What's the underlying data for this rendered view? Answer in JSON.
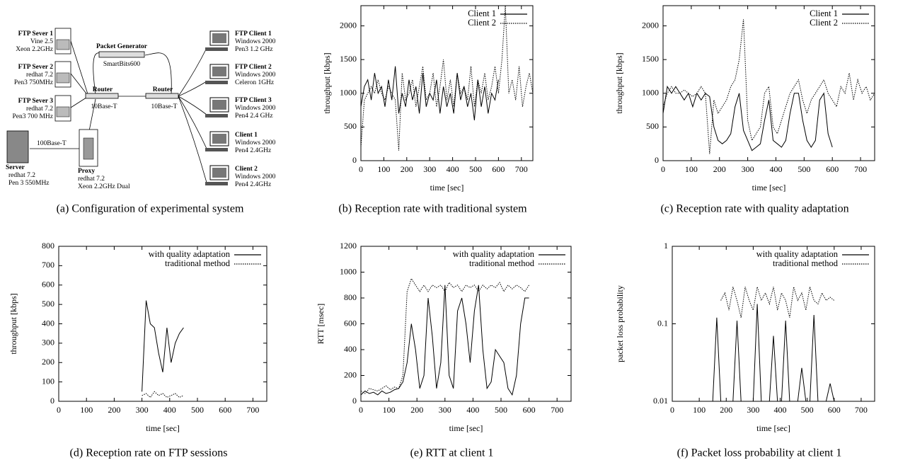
{
  "diagram": {
    "caption": "(a)  Configuration of experimental system",
    "nodes": [
      {
        "title": "FTP Sever 1",
        "lines": [
          "Vine 2.5",
          "Xeon 2.2GHz"
        ]
      },
      {
        "title": "FTP Sever 2",
        "lines": [
          "redhat 7.2",
          "Pen3 750MHz"
        ]
      },
      {
        "title": "FTP Sever 3",
        "lines": [
          "redhat 7.2",
          "Pen3 700 MHz"
        ]
      },
      {
        "title": "Packet Generator",
        "lines": [
          "SmartBits600"
        ]
      },
      {
        "title": "Router",
        "lines": [
          "10Base-T"
        ]
      },
      {
        "title": "Router",
        "lines": [
          "10Base-T"
        ]
      },
      {
        "title": "Server",
        "lines": [
          "redhat 7.2",
          "Pen 3  550MHz"
        ]
      },
      {
        "title": "Proxy",
        "lines": [
          "redhat 7.2",
          "Xeon 2.2GHz Dual"
        ]
      },
      {
        "title": "FTP Client 1",
        "lines": [
          "Windows 2000",
          "Pen3 1.2 GHz"
        ]
      },
      {
        "title": "FTP Client 2",
        "lines": [
          "Windows 2000",
          "Celeron 1GHz"
        ]
      },
      {
        "title": "FTP Client 3",
        "lines": [
          "Windows 2000",
          "Pen4 2.4 GHz"
        ]
      },
      {
        "title": "Client 1",
        "lines": [
          "Windows 2000",
          "Pen4 2.4GHz"
        ]
      },
      {
        "title": "Client 2",
        "lines": [
          "Windows 2000",
          "Pen4 2.4GHz"
        ]
      }
    ],
    "link_label": "100Base-T"
  },
  "chart_data": [
    {
      "type": "line",
      "caption": "(b)  Reception rate with traditional system",
      "xlabel": "time [sec]",
      "ylabel": "throughput [kbps]",
      "xlim": [
        0,
        750
      ],
      "ylim": [
        0,
        2300
      ],
      "xticks": [
        0,
        100,
        200,
        300,
        400,
        500,
        600,
        700
      ],
      "yticks": [
        0,
        500,
        1000,
        1500,
        2000
      ],
      "x": [
        0,
        15,
        30,
        45,
        60,
        75,
        90,
        105,
        120,
        135,
        150,
        165,
        180,
        195,
        210,
        225,
        240,
        255,
        270,
        285,
        300,
        315,
        330,
        345,
        360,
        375,
        390,
        405,
        420,
        435,
        450,
        465,
        480,
        495,
        510,
        525,
        540,
        555,
        570,
        585,
        600,
        615,
        630,
        645,
        660,
        675,
        690,
        705,
        720,
        735,
        750
      ],
      "series": [
        {
          "name": "Client 1",
          "color": "#000000",
          "line_style": "solid",
          "values": [
            800,
            1100,
            1200,
            900,
            1300,
            1000,
            1100,
            800,
            1200,
            900,
            1400,
            700,
            1000,
            800,
            1200,
            900,
            1100,
            700,
            1300,
            800,
            1000,
            900,
            1200,
            700,
            1100,
            800,
            1000,
            700,
            1300,
            900,
            1100,
            800,
            1000,
            600,
            1200,
            800,
            1100,
            700,
            1000,
            900,
            1200,
            null,
            null,
            null,
            null,
            null,
            null,
            null,
            null,
            null,
            null
          ]
        },
        {
          "name": "Client 2",
          "color": "#000000",
          "line_style": "dotted",
          "values": [
            200,
            900,
            1000,
            1100,
            1000,
            1200,
            1000,
            900,
            1100,
            1000,
            900,
            150,
            1300,
            900,
            1000,
            1200,
            800,
            1100,
            1400,
            900,
            1000,
            1300,
            800,
            1100,
            1500,
            900,
            1200,
            800,
            1300,
            1000,
            1100,
            900,
            1400,
            800,
            1200,
            1000,
            1300,
            900,
            1100,
            1400,
            1000,
            1500,
            2300,
            1000,
            1200,
            900,
            1400,
            800,
            1100,
            1300,
            1000
          ]
        }
      ]
    },
    {
      "type": "line",
      "caption": "(c)  Reception rate with quality adaptation",
      "xlabel": "time [sec]",
      "ylabel": "throughput [kbps]",
      "xlim": [
        0,
        750
      ],
      "ylim": [
        0,
        2300
      ],
      "xticks": [
        0,
        100,
        200,
        300,
        400,
        500,
        600,
        700
      ],
      "yticks": [
        0,
        500,
        1000,
        1500,
        2000
      ],
      "x": [
        0,
        15,
        30,
        45,
        60,
        75,
        90,
        105,
        120,
        135,
        150,
        165,
        180,
        195,
        210,
        225,
        240,
        255,
        270,
        285,
        300,
        315,
        330,
        345,
        360,
        375,
        390,
        405,
        420,
        435,
        450,
        465,
        480,
        495,
        510,
        525,
        540,
        555,
        570,
        585,
        600,
        615,
        630,
        645,
        660,
        675,
        690,
        705,
        720,
        735,
        750
      ],
      "series": [
        {
          "name": "Client 1",
          "color": "#000000",
          "line_style": "solid",
          "values": [
            700,
            1100,
            1000,
            1100,
            1000,
            900,
            1000,
            800,
            1000,
            900,
            1000,
            950,
            500,
            300,
            250,
            300,
            400,
            800,
            1000,
            450,
            300,
            150,
            200,
            250,
            600,
            900,
            300,
            250,
            200,
            300,
            700,
            1000,
            1000,
            600,
            300,
            200,
            300,
            900,
            1000,
            400,
            200,
            null,
            null,
            null,
            null,
            null,
            null,
            null,
            null,
            null,
            null
          ]
        },
        {
          "name": "Client 2",
          "color": "#000000",
          "line_style": "dotted",
          "values": [
            800,
            1000,
            1100,
            1000,
            1000,
            1050,
            1000,
            950,
            1000,
            1100,
            1000,
            100,
            900,
            700,
            800,
            900,
            1100,
            1200,
            1500,
            2100,
            600,
            300,
            400,
            500,
            1000,
            1100,
            500,
            400,
            600,
            800,
            1000,
            1100,
            1200,
            900,
            700,
            900,
            1000,
            1100,
            1200,
            1000,
            900,
            800,
            1100,
            1000,
            1300,
            900,
            1200,
            1000,
            1100,
            900,
            1000
          ]
        }
      ]
    },
    {
      "type": "line",
      "caption": "(d)  Reception rate on FTP sessions",
      "xlabel": "time [sec]",
      "ylabel": "throughput [kbps]",
      "xlim": [
        0,
        750
      ],
      "ylim": [
        0,
        800
      ],
      "xticks": [
        0,
        100,
        200,
        300,
        400,
        500,
        600,
        700
      ],
      "yticks": [
        0,
        100,
        200,
        300,
        400,
        500,
        600,
        700,
        800
      ],
      "x": [
        0,
        15,
        30,
        45,
        60,
        75,
        90,
        105,
        120,
        135,
        150,
        165,
        180,
        195,
        210,
        225,
        240,
        255,
        270,
        285,
        300,
        315,
        330,
        345,
        360,
        375,
        390,
        405,
        420,
        435,
        450,
        465,
        480,
        495,
        510,
        525,
        540,
        555,
        570,
        585,
        600,
        615,
        630,
        645,
        660,
        675,
        690,
        705,
        720,
        735,
        750
      ],
      "series": [
        {
          "name": "with quality adaptation",
          "color": "#000000",
          "line_style": "solid",
          "values": [
            null,
            null,
            null,
            null,
            null,
            null,
            null,
            null,
            null,
            null,
            null,
            null,
            null,
            null,
            null,
            null,
            null,
            null,
            null,
            null,
            50,
            520,
            400,
            380,
            250,
            150,
            380,
            200,
            300,
            350,
            380,
            null,
            null,
            null,
            null,
            null,
            null,
            null,
            null,
            null,
            null,
            null,
            null,
            null,
            null,
            null,
            null,
            null,
            null,
            null,
            null
          ]
        },
        {
          "name": "traditional method",
          "color": "#000000",
          "line_style": "dotted",
          "values": [
            null,
            null,
            null,
            null,
            null,
            null,
            null,
            null,
            null,
            null,
            null,
            null,
            null,
            null,
            null,
            null,
            null,
            null,
            null,
            null,
            30,
            40,
            20,
            50,
            30,
            40,
            20,
            30,
            40,
            20,
            30,
            null,
            null,
            null,
            null,
            null,
            null,
            null,
            null,
            null,
            null,
            null,
            null,
            null,
            null,
            null,
            null,
            null,
            null,
            null,
            null
          ]
        }
      ]
    },
    {
      "type": "line",
      "caption": "(e)  RTT at client 1",
      "xlabel": "time [sec]",
      "ylabel": "RTT [msec]",
      "xlim": [
        0,
        750
      ],
      "ylim": [
        0,
        1200
      ],
      "xticks": [
        0,
        100,
        200,
        300,
        400,
        500,
        600,
        700
      ],
      "yticks": [
        0,
        200,
        400,
        600,
        800,
        1000,
        1200
      ],
      "x": [
        0,
        15,
        30,
        45,
        60,
        75,
        90,
        105,
        120,
        135,
        150,
        165,
        180,
        195,
        210,
        225,
        240,
        255,
        270,
        285,
        300,
        315,
        330,
        345,
        360,
        375,
        390,
        405,
        420,
        435,
        450,
        465,
        480,
        495,
        510,
        525,
        540,
        555,
        570,
        585,
        600,
        615,
        630,
        645,
        660,
        675,
        690,
        705,
        720,
        735,
        750
      ],
      "series": [
        {
          "name": "with quality adaptation",
          "color": "#000000",
          "line_style": "solid",
          "values": [
            50,
            80,
            60,
            70,
            50,
            80,
            60,
            70,
            90,
            100,
            150,
            300,
            600,
            400,
            100,
            200,
            800,
            500,
            100,
            300,
            900,
            200,
            100,
            700,
            800,
            600,
            300,
            700,
            900,
            400,
            100,
            150,
            400,
            350,
            300,
            100,
            50,
            200,
            600,
            800,
            800,
            null,
            null,
            null,
            null,
            null,
            null,
            null,
            null,
            null,
            null
          ]
        },
        {
          "name": "traditional method",
          "color": "#000000",
          "line_style": "dotted",
          "values": [
            80,
            60,
            100,
            90,
            80,
            100,
            120,
            90,
            110,
            100,
            200,
            850,
            950,
            900,
            850,
            900,
            850,
            900,
            880,
            900,
            850,
            920,
            880,
            900,
            850,
            900,
            880,
            900,
            850,
            900,
            870,
            900,
            880,
            920,
            850,
            900,
            870,
            900,
            880,
            850,
            900,
            null,
            null,
            null,
            null,
            null,
            null,
            null,
            null,
            null,
            null
          ]
        }
      ]
    },
    {
      "type": "line",
      "caption": "(f)  Packet loss probability at client 1",
      "xlabel": "time [sec]",
      "ylabel": "packet loss probability",
      "log_y": true,
      "xlim": [
        0,
        750
      ],
      "ylim": [
        0.01,
        1
      ],
      "xticks": [
        0,
        100,
        200,
        300,
        400,
        500,
        600,
        700
      ],
      "yticks": [
        0.01,
        0.1,
        1
      ],
      "x": [
        0,
        15,
        30,
        45,
        60,
        75,
        90,
        105,
        120,
        135,
        150,
        165,
        180,
        195,
        210,
        225,
        240,
        255,
        270,
        285,
        300,
        315,
        330,
        345,
        360,
        375,
        390,
        405,
        420,
        435,
        450,
        465,
        480,
        495,
        510,
        525,
        540,
        555,
        570,
        585,
        600,
        615,
        630,
        645,
        660,
        675,
        690,
        705,
        720,
        735,
        750
      ],
      "series": [
        {
          "name": "with quality adaptation",
          "color": "#000000",
          "line_style": "solid",
          "values": [
            0.01,
            0.01,
            0.01,
            0.01,
            0.01,
            0.01,
            0.01,
            0.01,
            0.01,
            0.01,
            0.01,
            0.12,
            0.01,
            0.01,
            0.01,
            0.01,
            0.11,
            0.01,
            0.01,
            0.01,
            0.01,
            0.18,
            0.01,
            0.01,
            0.01,
            0.07,
            0.01,
            0.01,
            0.11,
            0.01,
            0.01,
            0.01,
            0.027,
            0.01,
            0.01,
            0.13,
            0.01,
            0.01,
            0.01,
            0.017,
            0.01,
            null,
            null,
            null,
            null,
            null,
            null,
            null,
            null,
            null,
            null
          ]
        },
        {
          "name": "traditional method",
          "color": "#000000",
          "line_style": "dotted",
          "values": [
            null,
            null,
            null,
            null,
            null,
            null,
            null,
            null,
            null,
            null,
            null,
            null,
            0.2,
            0.25,
            0.15,
            0.3,
            0.2,
            0.12,
            0.3,
            0.2,
            0.15,
            0.3,
            0.2,
            0.25,
            0.18,
            0.3,
            0.15,
            0.25,
            0.2,
            0.12,
            0.3,
            0.2,
            0.25,
            0.15,
            0.3,
            0.2,
            0.18,
            0.25,
            0.2,
            0.22,
            0.2,
            null,
            null,
            null,
            null,
            null,
            null,
            null,
            null,
            null,
            null
          ]
        }
      ]
    }
  ]
}
